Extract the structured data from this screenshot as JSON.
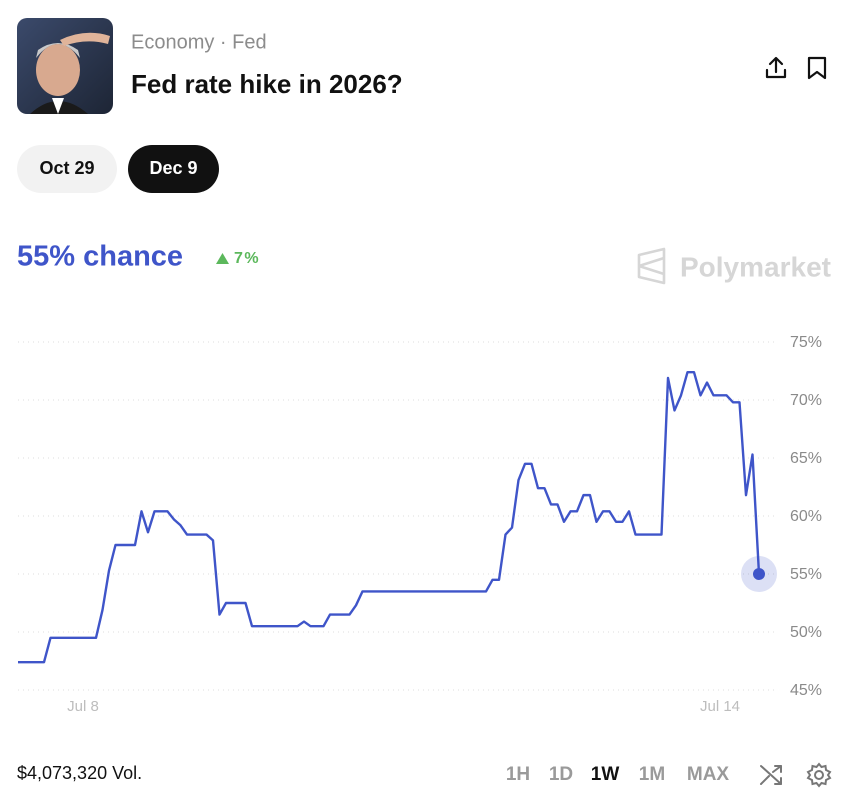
{
  "header": {
    "category": "Economy · Fed",
    "title": "Fed rate hike in 2026?"
  },
  "date_tabs": [
    "Oct 29",
    "Dec 9"
  ],
  "summary": {
    "chance": "55% chance",
    "change": "7%",
    "brand": "Polymarket"
  },
  "footer": {
    "volume": "$4,073,320 Vol.",
    "ranges": [
      "1H",
      "1D",
      "1W",
      "1M",
      "MAX"
    ]
  },
  "chart_data": {
    "type": "line",
    "color": "#3f55c9",
    "categories": [
      null,
      null,
      null,
      null,
      null,
      null,
      null,
      null,
      null,
      null,
      "Jul 8",
      null,
      null,
      null,
      null,
      null,
      null,
      null,
      null,
      null,
      null,
      null,
      null,
      null,
      null,
      null,
      null,
      null,
      null,
      null,
      null,
      null,
      null,
      null,
      null,
      null,
      null,
      null,
      null,
      null,
      null,
      null,
      null,
      null,
      null,
      null,
      null,
      null,
      null,
      null,
      null,
      null,
      null,
      null,
      null,
      null,
      null,
      null,
      null,
      null,
      null,
      null,
      null,
      null,
      null,
      null,
      null,
      null,
      null,
      null,
      null,
      null,
      null,
      null,
      null,
      null,
      null,
      null,
      null,
      null,
      null,
      null,
      null,
      null,
      null,
      null,
      null,
      null,
      null,
      null,
      null,
      null,
      null,
      null,
      null,
      null,
      null,
      null,
      null,
      null,
      null,
      null,
      null,
      null,
      null,
      null,
      null,
      null,
      "Jul 14",
      null,
      null,
      null,
      null,
      null,
      null
    ],
    "values": [
      47.4,
      47.4,
      47.4,
      47.4,
      47.4,
      49.5,
      49.5,
      49.5,
      49.5,
      49.5,
      49.5,
      49.5,
      49.5,
      51.9,
      55.3,
      57.5,
      57.5,
      57.5,
      57.5,
      60.4,
      58.6,
      60.4,
      60.4,
      60.4,
      59.7,
      59.2,
      58.4,
      58.4,
      58.4,
      58.4,
      57.9,
      51.5,
      52.5,
      52.5,
      52.5,
      52.5,
      50.5,
      50.5,
      50.5,
      50.5,
      50.5,
      50.5,
      50.5,
      50.5,
      50.9,
      50.5,
      50.5,
      50.5,
      51.5,
      51.5,
      51.5,
      51.5,
      52.3,
      53.5,
      53.5,
      53.5,
      53.5,
      53.5,
      53.5,
      53.5,
      53.5,
      53.5,
      53.5,
      53.5,
      53.5,
      53.5,
      53.5,
      53.5,
      53.5,
      53.5,
      53.5,
      53.5,
      53.5,
      54.5,
      54.5,
      58.4,
      59,
      63.1,
      64.5,
      64.5,
      62.4,
      62.4,
      61,
      61,
      59.5,
      60.4,
      60.4,
      61.8,
      61.8,
      59.5,
      60.4,
      60.4,
      59.5,
      59.5,
      60.4,
      58.4,
      58.4,
      58.4,
      58.4,
      58.4,
      71.9,
      69.1,
      70.4,
      72.4,
      72.4,
      70.4,
      71.5,
      70.4,
      70.4,
      70.4,
      69.8,
      69.8,
      61.8,
      65.3,
      55
    ],
    "ylim": [
      45,
      75
    ],
    "yticks": [
      {
        "value": 45,
        "label": "45%"
      },
      {
        "value": 50,
        "label": "50%"
      },
      {
        "value": 55,
        "label": "55%"
      },
      {
        "value": 60,
        "label": "60%"
      },
      {
        "value": 65,
        "label": "65%"
      },
      {
        "value": 70,
        "label": "70%"
      },
      {
        "value": 75,
        "label": "75%"
      }
    ],
    "grid": true
  }
}
